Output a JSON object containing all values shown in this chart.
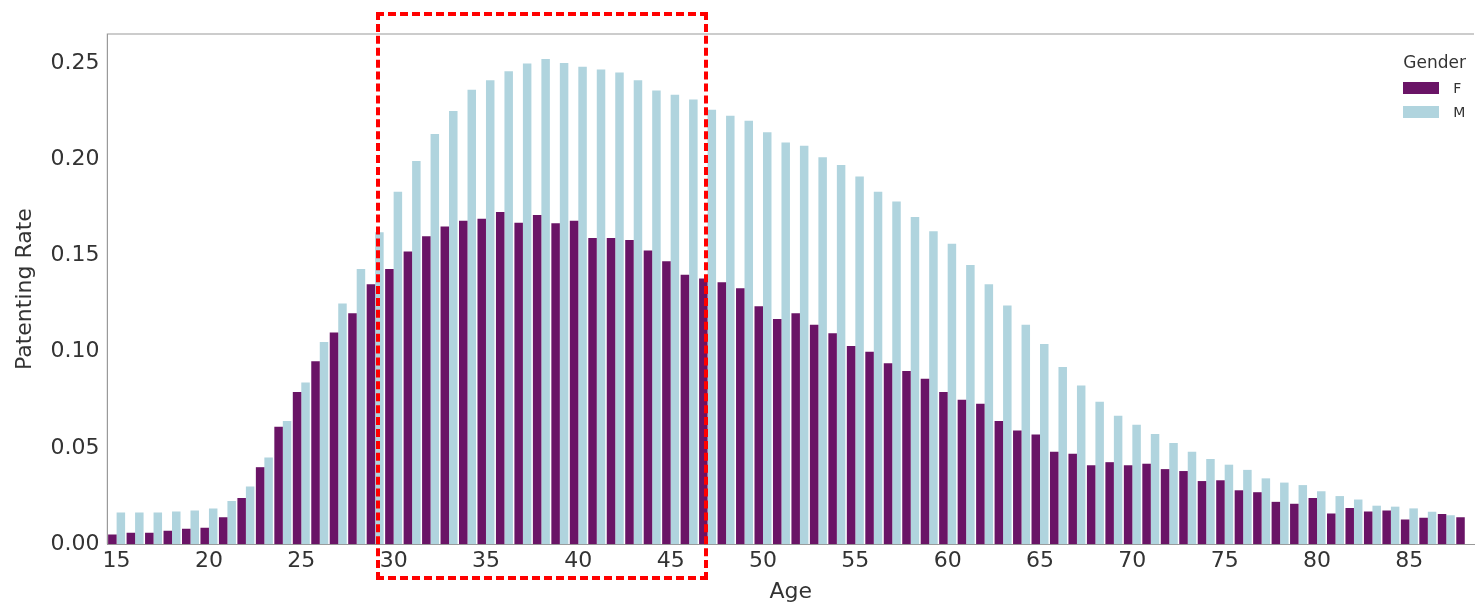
{
  "chart_data": {
    "type": "bar",
    "xlabel": "Age",
    "ylabel": "Patenting Rate",
    "legend_title": "Gender",
    "legend": "top right",
    "grid": false,
    "categories": [
      "15",
      null,
      null,
      null,
      null,
      "20",
      null,
      null,
      null,
      null,
      "25",
      null,
      null,
      null,
      null,
      "30",
      null,
      null,
      null,
      null,
      "35",
      null,
      null,
      null,
      null,
      "40",
      null,
      null,
      null,
      null,
      "45",
      null,
      null,
      null,
      null,
      "50",
      null,
      null,
      null,
      null,
      "55",
      null,
      null,
      null,
      null,
      "60",
      null,
      null,
      null,
      null,
      "65",
      null,
      null,
      null,
      null,
      "70",
      null,
      null,
      null,
      null,
      "75",
      null,
      null,
      null,
      null,
      "80",
      null,
      null,
      null,
      null,
      "85",
      null,
      null,
      null
    ],
    "ylim": [
      0,
      0.265
    ],
    "yticks": [
      {
        "value": 0,
        "label": "0.00"
      },
      {
        "value": 0.05,
        "label": "0.05"
      },
      {
        "value": 0.1,
        "label": "0.10"
      },
      {
        "value": 0.15,
        "label": "0.15"
      },
      {
        "value": 0.2,
        "label": "0.20"
      },
      {
        "value": 0.25,
        "label": "0.25"
      }
    ],
    "series": [
      {
        "name": "F",
        "color": "#6a1466",
        "values": [
          0.005,
          0.006,
          0.006,
          0.007,
          0.008,
          0.0085,
          0.014,
          0.024,
          0.04,
          0.061,
          0.079,
          0.095,
          0.11,
          0.12,
          0.135,
          0.143,
          0.152,
          0.16,
          0.165,
          0.168,
          0.169,
          0.1725,
          0.167,
          0.171,
          0.1667,
          0.168,
          0.159,
          0.159,
          0.158,
          0.1525,
          0.147,
          0.14,
          0.138,
          0.136,
          0.133,
          0.1236,
          0.117,
          0.12,
          0.114,
          0.1096,
          0.103,
          0.1,
          0.094,
          0.09,
          0.086,
          0.079,
          0.075,
          0.073,
          0.064,
          0.059,
          0.057,
          0.048,
          0.047,
          0.041,
          0.0426,
          0.041,
          0.0418,
          0.039,
          0.038,
          0.0328,
          0.0332,
          0.028,
          0.027,
          0.022,
          0.021,
          0.024,
          0.016,
          0.0188,
          0.017,
          0.0175,
          0.0128,
          0.0137,
          0.0157,
          0.014
        ]
      },
      {
        "name": "M",
        "color": "#b0d4de",
        "values": [
          0.0165,
          0.0165,
          0.0165,
          0.017,
          0.0175,
          0.0186,
          0.0225,
          0.03,
          0.045,
          0.064,
          0.084,
          0.105,
          0.125,
          0.143,
          0.162,
          0.183,
          0.199,
          0.213,
          0.225,
          0.236,
          0.241,
          0.2456,
          0.2497,
          0.252,
          0.25,
          0.248,
          0.2465,
          0.245,
          0.241,
          0.2356,
          0.2335,
          0.231,
          0.2257,
          0.2225,
          0.22,
          0.214,
          0.2087,
          0.207,
          0.201,
          0.197,
          0.191,
          0.183,
          0.178,
          0.17,
          0.1626,
          0.156,
          0.145,
          0.135,
          0.124,
          0.114,
          0.104,
          0.092,
          0.0824,
          0.074,
          0.0667,
          0.062,
          0.0573,
          0.0525,
          0.048,
          0.0443,
          0.0413,
          0.0386,
          0.0342,
          0.032,
          0.0307,
          0.0275,
          0.025,
          0.0232,
          0.02,
          0.0195,
          0.0186,
          0.0168,
          0.015,
          null
        ]
      }
    ]
  }
}
